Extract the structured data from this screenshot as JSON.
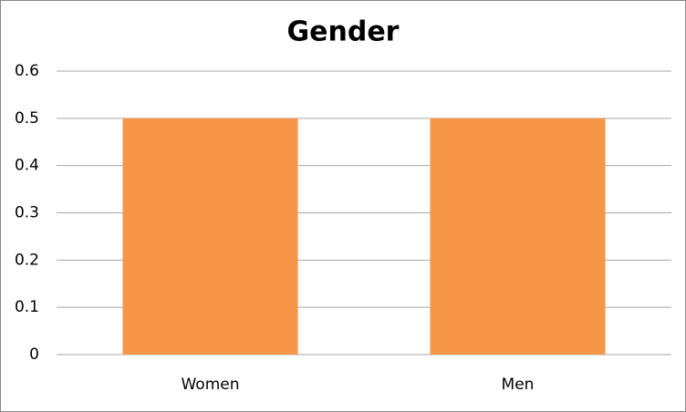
{
  "chart_data": {
    "type": "bar",
    "title": "Gender",
    "categories": [
      "Women",
      "Men"
    ],
    "values": [
      0.5,
      0.5
    ],
    "color": "#f79646",
    "ylim": [
      0,
      0.6
    ],
    "yticks": [
      0,
      0.1,
      0.2,
      0.3,
      0.4,
      0.5,
      0.6
    ],
    "grid": true
  }
}
